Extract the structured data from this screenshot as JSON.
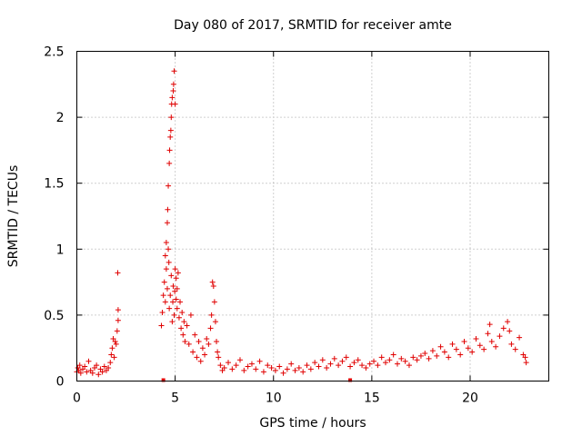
{
  "chart_data": {
    "type": "scatter",
    "title": "Day 080 of 2017, SRMTID for receiver amte",
    "xlabel": "GPS time / hours",
    "ylabel": "SRMTID / TECUs",
    "xlim": [
      0,
      24
    ],
    "ylim": [
      0,
      2.5
    ],
    "xticks": [
      0,
      5,
      10,
      15,
      20
    ],
    "xtick_labels": [
      "0",
      "5",
      "10",
      "15",
      "20"
    ],
    "yticks": [
      0,
      0.5,
      1,
      1.5,
      2,
      2.5
    ],
    "ytick_labels": [
      "0",
      "0.5",
      "1",
      "1.5",
      "2",
      "2.5"
    ],
    "grid": true,
    "marker": "+",
    "color": "#e00000",
    "series": [
      {
        "name": "SRMTID",
        "x": [
          0.0,
          0.05,
          0.1,
          0.15,
          0.2,
          0.3,
          0.4,
          0.5,
          0.6,
          0.7,
          0.8,
          0.9,
          1.0,
          1.1,
          1.2,
          1.3,
          1.4,
          1.5,
          1.6,
          1.7,
          1.75,
          1.8,
          1.85,
          1.9,
          1.95,
          2.0,
          2.05,
          2.1,
          2.08,
          2.1,
          4.3,
          4.35,
          4.4,
          4.45,
          4.5,
          4.5,
          4.55,
          4.55,
          4.6,
          4.6,
          4.62,
          4.65,
          4.65,
          4.68,
          4.7,
          4.7,
          4.72,
          4.75,
          4.75,
          4.78,
          4.8,
          4.8,
          4.82,
          4.85,
          4.85,
          4.88,
          4.9,
          4.9,
          4.92,
          4.95,
          4.95,
          4.98,
          5.0,
          5.0,
          5.05,
          5.05,
          5.1,
          5.1,
          5.15,
          5.2,
          5.25,
          5.3,
          5.35,
          5.4,
          5.45,
          5.5,
          5.6,
          5.7,
          5.8,
          5.9,
          6.0,
          6.1,
          6.2,
          6.3,
          6.4,
          6.5,
          6.6,
          6.7,
          6.8,
          6.85,
          6.9,
          6.95,
          7.0,
          7.05,
          7.1,
          7.15,
          7.2,
          7.3,
          7.4,
          7.5,
          7.7,
          7.9,
          8.1,
          8.3,
          8.5,
          8.7,
          8.9,
          9.1,
          9.3,
          9.5,
          9.7,
          9.9,
          10.1,
          10.3,
          10.5,
          10.7,
          10.9,
          11.1,
          11.3,
          11.5,
          11.7,
          11.9,
          12.1,
          12.3,
          12.5,
          12.7,
          12.9,
          13.1,
          13.3,
          13.5,
          13.7,
          13.9,
          14.1,
          14.3,
          14.5,
          14.7,
          14.9,
          15.1,
          15.3,
          15.5,
          15.7,
          15.9,
          16.1,
          16.3,
          16.5,
          16.7,
          16.9,
          17.1,
          17.3,
          17.5,
          17.7,
          17.9,
          18.1,
          18.3,
          18.5,
          18.7,
          18.9,
          19.1,
          19.3,
          19.5,
          19.7,
          19.9,
          20.1,
          20.3,
          20.5,
          20.7,
          20.9,
          21.0,
          21.1,
          21.3,
          21.5,
          21.7,
          21.9,
          22.0,
          22.1,
          22.3,
          22.5,
          22.7,
          22.8,
          22.85
        ],
        "y": [
          0.07,
          0.1,
          0.08,
          0.12,
          0.06,
          0.09,
          0.11,
          0.07,
          0.15,
          0.08,
          0.06,
          0.1,
          0.12,
          0.05,
          0.09,
          0.07,
          0.11,
          0.08,
          0.1,
          0.14,
          0.2,
          0.25,
          0.32,
          0.18,
          0.3,
          0.28,
          0.38,
          0.54,
          0.82,
          0.46,
          0.42,
          0.52,
          0.65,
          0.75,
          0.6,
          0.95,
          0.85,
          1.05,
          0.7,
          1.2,
          1.3,
          1.0,
          1.48,
          0.9,
          1.65,
          0.55,
          1.75,
          1.85,
          0.65,
          1.9,
          2.0,
          0.8,
          2.1,
          0.45,
          2.15,
          0.6,
          2.2,
          0.72,
          2.25,
          0.5,
          2.35,
          0.68,
          2.1,
          0.85,
          0.62,
          0.78,
          0.55,
          0.7,
          0.82,
          0.48,
          0.6,
          0.4,
          0.52,
          0.35,
          0.45,
          0.3,
          0.42,
          0.28,
          0.5,
          0.22,
          0.35,
          0.18,
          0.3,
          0.15,
          0.25,
          0.2,
          0.32,
          0.28,
          0.4,
          0.5,
          0.75,
          0.72,
          0.6,
          0.45,
          0.3,
          0.22,
          0.18,
          0.12,
          0.08,
          0.1,
          0.14,
          0.09,
          0.12,
          0.16,
          0.08,
          0.11,
          0.13,
          0.09,
          0.15,
          0.07,
          0.12,
          0.1,
          0.08,
          0.11,
          0.06,
          0.09,
          0.13,
          0.08,
          0.1,
          0.07,
          0.12,
          0.09,
          0.14,
          0.11,
          0.16,
          0.1,
          0.13,
          0.17,
          0.12,
          0.15,
          0.18,
          0.11,
          0.14,
          0.16,
          0.12,
          0.1,
          0.13,
          0.15,
          0.12,
          0.18,
          0.14,
          0.16,
          0.2,
          0.13,
          0.17,
          0.15,
          0.12,
          0.18,
          0.16,
          0.19,
          0.21,
          0.17,
          0.23,
          0.19,
          0.26,
          0.22,
          0.18,
          0.28,
          0.24,
          0.2,
          0.3,
          0.25,
          0.22,
          0.32,
          0.27,
          0.24,
          0.36,
          0.43,
          0.3,
          0.26,
          0.34,
          0.4,
          0.45,
          0.38,
          0.28,
          0.24,
          0.33,
          0.2,
          0.18,
          0.14
        ]
      }
    ],
    "gap_markers_x": [
      4.4,
      13.9
    ]
  }
}
